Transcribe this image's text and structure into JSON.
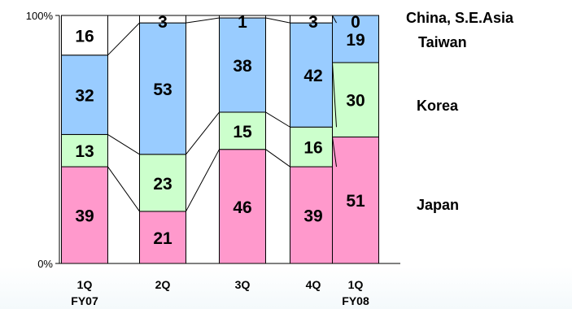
{
  "chart_data": {
    "type": "bar",
    "stacked": true,
    "percent": true,
    "categories": [
      [
        "1Q",
        "FY07"
      ],
      [
        "2Q",
        ""
      ],
      [
        "3Q",
        ""
      ],
      [
        "4Q",
        ""
      ],
      [
        "1Q",
        "FY08"
      ]
    ],
    "series": [
      {
        "name": "Japan",
        "color": "#ff99cc",
        "values": [
          39,
          21,
          46,
          39,
          51
        ]
      },
      {
        "name": "Korea",
        "color": "#ccffcc",
        "values": [
          13,
          23,
          15,
          16,
          30
        ]
      },
      {
        "name": "Taiwan",
        "color": "#99ccff",
        "values": [
          32,
          53,
          38,
          42,
          19
        ]
      },
      {
        "name": "China, S.E.Asia",
        "color": "#ffffff",
        "values": [
          16,
          3,
          1,
          3,
          0
        ]
      }
    ],
    "yaxis": {
      "ticks": [
        "0%",
        "100%"
      ],
      "ylim": [
        0,
        100
      ]
    },
    "connector_lines": true,
    "legend": "right, inline labels"
  }
}
